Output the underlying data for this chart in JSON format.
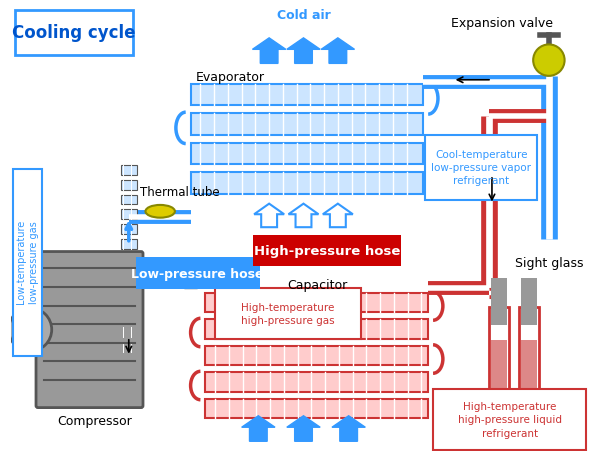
{
  "title": "Cooling cycle",
  "labels": {
    "cold_air": "Cold air",
    "evaporator": "Evaporator",
    "expansion_valve": "Expansion valve",
    "thermal_tube": "Thermal tube",
    "low_pressure_hose": "Low-pressure hose",
    "low_temp_gas": "Low-temperature\nlow-pressure gas",
    "cool_temp_vapor": "Cool-temperature\nlow-pressure vapor\nrefrigerant",
    "high_pressure_hose": "High-pressure hose",
    "high_temp_gas": "High-temperature\nhigh-pressure gas",
    "capacitor": "Capacitor",
    "compressor": "Compressor",
    "sight_glass": "Sight glass",
    "high_temp_liquid": "High-temperature\nhigh-pressure liquid\nrefrigerant"
  },
  "colors": {
    "title_text": "#0055cc",
    "blue_arrow": "#3399ff",
    "blue_hose": "#3399ff",
    "red_hose": "#cc3333",
    "red_label_bg": "#cc0000",
    "blue_box_border": "#3399ff",
    "red_box_border": "#cc0000",
    "gray": "#888888",
    "dark_gray": "#555555",
    "light_gray": "#cccccc",
    "yellow": "#ddcc00",
    "coil_blue_fill": "#cce5ff",
    "coil_red_fill": "#ffcccc",
    "white": "#ffffff",
    "black": "#000000"
  }
}
